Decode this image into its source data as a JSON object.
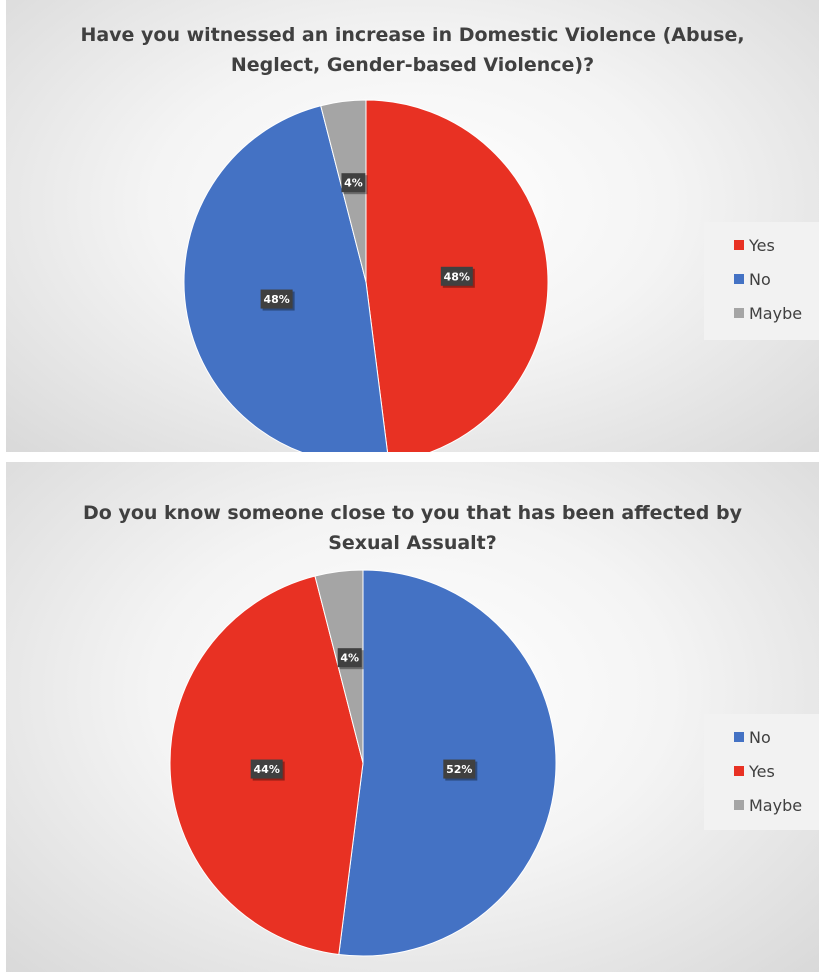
{
  "chart_data": [
    {
      "type": "pie",
      "title": "Have you witnessed an increase in Domestic Violence  (Abuse, Neglect, Gender-based Violence)?",
      "slices": [
        {
          "label": "Yes",
          "value": 48,
          "display": "48%",
          "color": "#E83123"
        },
        {
          "label": "No",
          "value": 48,
          "display": "48%",
          "color": "#4472C4"
        },
        {
          "label": "Maybe",
          "value": 4,
          "display": "4%",
          "color": "#A5A5A5"
        }
      ],
      "legend": "right"
    },
    {
      "type": "pie",
      "title": "Do you know someone close to you that has been affected by Sexual Assualt?",
      "slices": [
        {
          "label": "No",
          "value": 52,
          "display": "52%",
          "color": "#4472C4"
        },
        {
          "label": "Yes",
          "value": 44,
          "display": "44%",
          "color": "#E83123"
        },
        {
          "label": "Maybe",
          "value": 4,
          "display": "4%",
          "color": "#A5A5A5"
        }
      ],
      "legend": "right"
    }
  ]
}
